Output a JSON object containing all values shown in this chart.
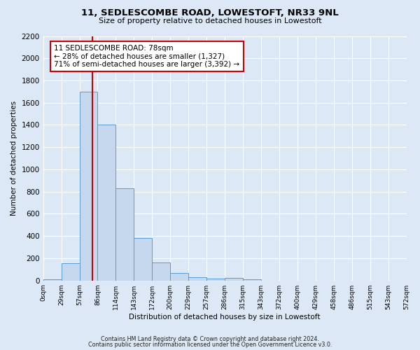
{
  "title": "11, SEDLESCOMBE ROAD, LOWESTOFT, NR33 9NL",
  "subtitle": "Size of property relative to detached houses in Lowestoft",
  "xlabel": "Distribution of detached houses by size in Lowestoft",
  "ylabel": "Number of detached properties",
  "bar_values": [
    10,
    155,
    1700,
    1400,
    830,
    385,
    165,
    65,
    30,
    20,
    25,
    10,
    0,
    0,
    0,
    0,
    0,
    0,
    0,
    0
  ],
  "bin_labels": [
    "0sqm",
    "29sqm",
    "57sqm",
    "86sqm",
    "114sqm",
    "143sqm",
    "172sqm",
    "200sqm",
    "229sqm",
    "257sqm",
    "286sqm",
    "315sqm",
    "343sqm",
    "372sqm",
    "400sqm",
    "429sqm",
    "458sqm",
    "486sqm",
    "515sqm",
    "543sqm",
    "572sqm"
  ],
  "bar_color": "#c5d8ed",
  "bar_edge_color": "#5b9bd5",
  "ylim": [
    0,
    2200
  ],
  "yticks": [
    0,
    200,
    400,
    600,
    800,
    1000,
    1200,
    1400,
    1600,
    1800,
    2000,
    2200
  ],
  "annotation_title": "11 SEDLESCOMBE ROAD: 78sqm",
  "annotation_line1": "← 28% of detached houses are smaller (1,327)",
  "annotation_line2": "71% of semi-detached houses are larger (3,392) →",
  "annotation_box_color": "#ffffff",
  "annotation_box_edge": "#cc0000",
  "red_line_color": "#cc0000",
  "footer1": "Contains HM Land Registry data © Crown copyright and database right 2024.",
  "footer2": "Contains public sector information licensed under the Open Government Licence v3.0.",
  "background_color": "#dce8f5",
  "plot_background": "#dce8f5",
  "grid_color": "#ffffff"
}
